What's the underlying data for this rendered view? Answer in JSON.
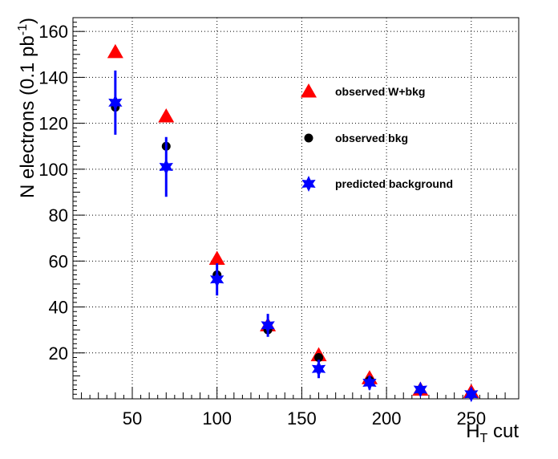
{
  "chart_data": {
    "type": "scatter",
    "title": "",
    "xlabel": "H",
    "xlabel_sub": "T",
    "xlabel_suffix": " cut",
    "ylabel": "N electrons (0.1 pb",
    "ylabel_sup": "-1",
    "ylabel_suffix": ")",
    "xlim": [
      15,
      278
    ],
    "ylim": [
      0,
      166
    ],
    "x_ticks": [
      50,
      100,
      150,
      200,
      250
    ],
    "y_ticks": [
      20,
      40,
      60,
      80,
      100,
      120,
      140,
      160
    ],
    "x_tick_labels": [
      "50",
      "100",
      "150",
      "200",
      "250"
    ],
    "y_tick_labels": [
      "20",
      "40",
      "60",
      "80",
      "100",
      "120",
      "140",
      "160"
    ],
    "grid": true,
    "legend_position": "top-right",
    "series": [
      {
        "name": "observed W+bkg",
        "marker": "triangle",
        "color": "#ff0000",
        "x": [
          40,
          70,
          100,
          130,
          160,
          190,
          220,
          250
        ],
        "y": [
          151,
          123,
          61,
          32,
          19,
          9,
          4,
          3
        ]
      },
      {
        "name": "observed bkg",
        "marker": "circle",
        "color": "#000000",
        "x": [
          40,
          70,
          100,
          130,
          160,
          190,
          220,
          250
        ],
        "y": [
          127,
          110,
          54,
          30,
          18,
          8,
          4,
          2
        ]
      },
      {
        "name": "predicted background",
        "marker": "star",
        "color": "#0000ff",
        "x": [
          40,
          70,
          100,
          130,
          160,
          190,
          220,
          250
        ],
        "y": [
          129,
          101,
          52,
          32,
          13,
          7,
          4,
          2
        ],
        "err": [
          14,
          13,
          7,
          5,
          4,
          3,
          2,
          1
        ]
      }
    ]
  }
}
